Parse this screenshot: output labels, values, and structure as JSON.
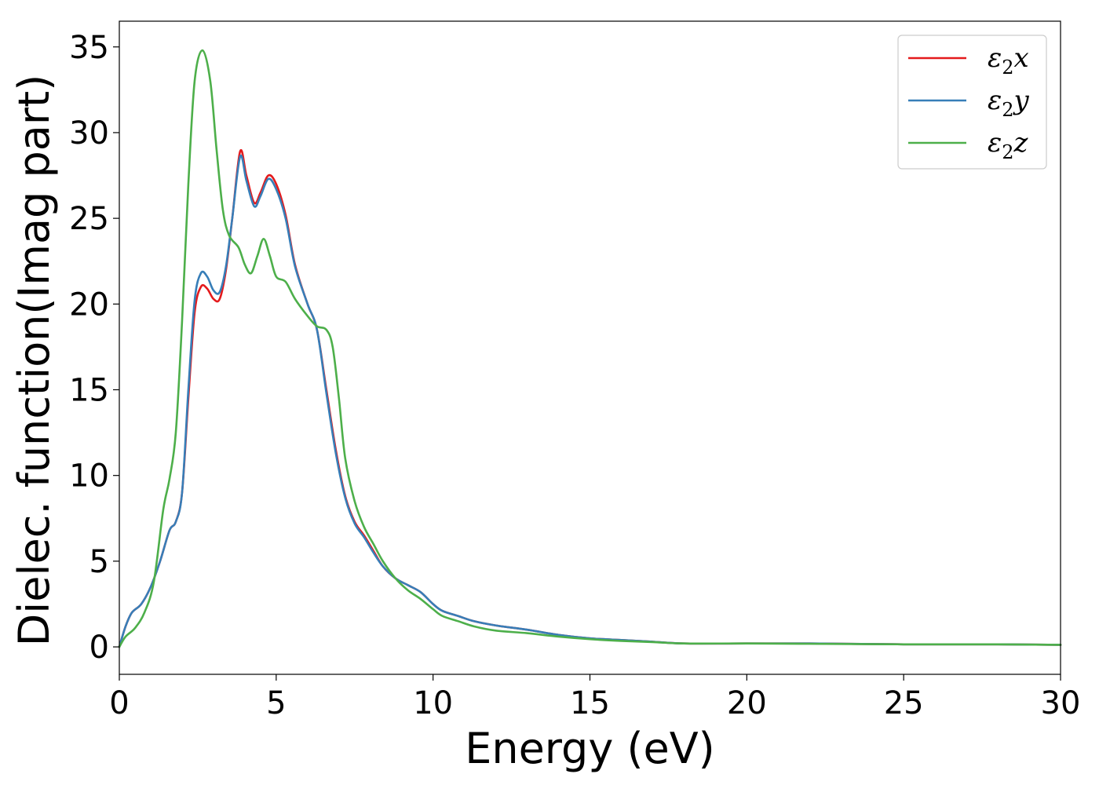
{
  "chart_data": {
    "type": "line",
    "xlabel": "Energy (eV)",
    "ylabel": "Dielec. function(Imag part)",
    "xlim": [
      0,
      30
    ],
    "ylim": [
      -1.6,
      36.5
    ],
    "xticks": [
      0,
      5,
      10,
      15,
      20,
      25,
      30
    ],
    "yticks": [
      0,
      5,
      10,
      15,
      20,
      25,
      30,
      35
    ],
    "grid": false,
    "legend_position": "top-right",
    "series": [
      {
        "name": "ε2x",
        "legend_base": "ε",
        "legend_sub": "2",
        "legend_var": "x",
        "color": "#e41a1c",
        "points": [
          [
            0,
            0
          ],
          [
            0.2,
            1.2
          ],
          [
            0.4,
            2.0
          ],
          [
            0.7,
            2.5
          ],
          [
            1.0,
            3.5
          ],
          [
            1.3,
            5.0
          ],
          [
            1.6,
            6.8
          ],
          [
            1.8,
            7.3
          ],
          [
            2.0,
            9.0
          ],
          [
            2.2,
            14.5
          ],
          [
            2.4,
            19.5
          ],
          [
            2.6,
            21.0
          ],
          [
            2.8,
            20.9
          ],
          [
            3.0,
            20.3
          ],
          [
            3.2,
            20.3
          ],
          [
            3.4,
            22.0
          ],
          [
            3.6,
            25.0
          ],
          [
            3.85,
            28.9
          ],
          [
            4.05,
            27.5
          ],
          [
            4.3,
            25.9
          ],
          [
            4.5,
            26.5
          ],
          [
            4.75,
            27.5
          ],
          [
            5.0,
            27.0
          ],
          [
            5.3,
            25.2
          ],
          [
            5.6,
            22.3
          ],
          [
            6.0,
            20.0
          ],
          [
            6.3,
            18.5
          ],
          [
            6.6,
            15.0
          ],
          [
            6.9,
            11.5
          ],
          [
            7.2,
            8.8
          ],
          [
            7.5,
            7.3
          ],
          [
            7.8,
            6.5
          ],
          [
            8.1,
            5.6
          ],
          [
            8.4,
            4.7
          ],
          [
            8.8,
            4.0
          ],
          [
            9.2,
            3.6
          ],
          [
            9.6,
            3.2
          ],
          [
            10.0,
            2.5
          ],
          [
            10.3,
            2.1
          ],
          [
            10.8,
            1.8
          ],
          [
            11.3,
            1.5
          ],
          [
            12.0,
            1.25
          ],
          [
            13.0,
            1.0
          ],
          [
            14.0,
            0.7
          ],
          [
            15.0,
            0.5
          ],
          [
            16.0,
            0.4
          ],
          [
            17.0,
            0.3
          ],
          [
            18.0,
            0.2
          ],
          [
            20.0,
            0.2
          ],
          [
            22.0,
            0.2
          ],
          [
            25.0,
            0.15
          ],
          [
            28.0,
            0.15
          ],
          [
            30.0,
            0.12
          ]
        ]
      },
      {
        "name": "ε2y",
        "legend_base": "ε",
        "legend_sub": "2",
        "legend_var": "y",
        "color": "#377eb8",
        "points": [
          [
            0,
            0
          ],
          [
            0.2,
            1.2
          ],
          [
            0.4,
            2.0
          ],
          [
            0.7,
            2.5
          ],
          [
            1.0,
            3.5
          ],
          [
            1.3,
            5.0
          ],
          [
            1.6,
            6.8
          ],
          [
            1.8,
            7.3
          ],
          [
            2.0,
            9.0
          ],
          [
            2.2,
            15.0
          ],
          [
            2.4,
            20.2
          ],
          [
            2.6,
            21.8
          ],
          [
            2.8,
            21.6
          ],
          [
            3.0,
            20.8
          ],
          [
            3.2,
            20.7
          ],
          [
            3.4,
            22.2
          ],
          [
            3.6,
            25.0
          ],
          [
            3.85,
            28.6
          ],
          [
            4.05,
            27.2
          ],
          [
            4.3,
            25.7
          ],
          [
            4.5,
            26.3
          ],
          [
            4.75,
            27.3
          ],
          [
            5.0,
            26.7
          ],
          [
            5.3,
            25.0
          ],
          [
            5.6,
            22.2
          ],
          [
            6.0,
            20.0
          ],
          [
            6.3,
            18.5
          ],
          [
            6.6,
            14.8
          ],
          [
            6.9,
            11.3
          ],
          [
            7.2,
            8.7
          ],
          [
            7.5,
            7.2
          ],
          [
            7.8,
            6.4
          ],
          [
            8.1,
            5.5
          ],
          [
            8.4,
            4.7
          ],
          [
            8.8,
            4.0
          ],
          [
            9.2,
            3.6
          ],
          [
            9.6,
            3.2
          ],
          [
            10.0,
            2.5
          ],
          [
            10.3,
            2.1
          ],
          [
            10.8,
            1.8
          ],
          [
            11.3,
            1.5
          ],
          [
            12.0,
            1.25
          ],
          [
            13.0,
            1.0
          ],
          [
            14.0,
            0.7
          ],
          [
            15.0,
            0.5
          ],
          [
            16.0,
            0.4
          ],
          [
            17.0,
            0.3
          ],
          [
            18.0,
            0.2
          ],
          [
            20.0,
            0.2
          ],
          [
            22.0,
            0.2
          ],
          [
            25.0,
            0.15
          ],
          [
            28.0,
            0.15
          ],
          [
            30.0,
            0.12
          ]
        ]
      },
      {
        "name": "ε2z",
        "legend_base": "ε",
        "legend_sub": "2",
        "legend_var": "z",
        "color": "#4daf4a",
        "points": [
          [
            0,
            0
          ],
          [
            0.2,
            0.6
          ],
          [
            0.5,
            1.1
          ],
          [
            0.8,
            2.0
          ],
          [
            1.1,
            3.8
          ],
          [
            1.4,
            8.0
          ],
          [
            1.6,
            9.8
          ],
          [
            1.8,
            12.5
          ],
          [
            2.0,
            19.0
          ],
          [
            2.2,
            27.0
          ],
          [
            2.4,
            33.0
          ],
          [
            2.65,
            34.8
          ],
          [
            2.9,
            33.0
          ],
          [
            3.1,
            29.0
          ],
          [
            3.3,
            25.5
          ],
          [
            3.5,
            24.0
          ],
          [
            3.8,
            23.3
          ],
          [
            4.0,
            22.3
          ],
          [
            4.2,
            21.8
          ],
          [
            4.4,
            22.8
          ],
          [
            4.6,
            23.8
          ],
          [
            4.8,
            22.8
          ],
          [
            5.0,
            21.6
          ],
          [
            5.3,
            21.3
          ],
          [
            5.6,
            20.3
          ],
          [
            6.0,
            19.3
          ],
          [
            6.3,
            18.7
          ],
          [
            6.6,
            18.5
          ],
          [
            6.8,
            17.5
          ],
          [
            7.0,
            14.5
          ],
          [
            7.2,
            11.0
          ],
          [
            7.5,
            8.5
          ],
          [
            7.8,
            7.0
          ],
          [
            8.1,
            6.0
          ],
          [
            8.4,
            5.0
          ],
          [
            8.8,
            4.0
          ],
          [
            9.2,
            3.3
          ],
          [
            9.6,
            2.8
          ],
          [
            10.0,
            2.2
          ],
          [
            10.3,
            1.8
          ],
          [
            10.8,
            1.5
          ],
          [
            11.3,
            1.2
          ],
          [
            12.0,
            0.95
          ],
          [
            13.0,
            0.8
          ],
          [
            14.0,
            0.6
          ],
          [
            15.0,
            0.45
          ],
          [
            16.0,
            0.35
          ],
          [
            17.0,
            0.28
          ],
          [
            18.0,
            0.2
          ],
          [
            20.0,
            0.2
          ],
          [
            22.0,
            0.18
          ],
          [
            25.0,
            0.15
          ],
          [
            28.0,
            0.15
          ],
          [
            30.0,
            0.12
          ]
        ]
      }
    ]
  }
}
